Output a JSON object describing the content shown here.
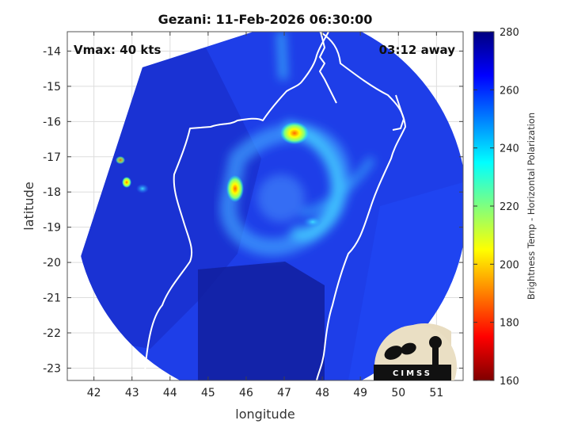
{
  "chart_data": {
    "type": "heatmap",
    "title": "Gezani: 11-Feb-2026 06:30:00",
    "xlabel": "longitude",
    "ylabel": "latitude",
    "xlim": [
      41.3,
      51.7
    ],
    "ylim": [
      -23.35,
      -13.45
    ],
    "xticks": [
      42,
      43,
      44,
      45,
      46,
      47,
      48,
      49,
      50,
      51
    ],
    "yticks": [
      -14,
      -15,
      -16,
      -17,
      -18,
      -19,
      -20,
      -21,
      -22,
      -23
    ],
    "grid": true,
    "annotations": {
      "vmax": "Vmax: 40 kts",
      "time_away": "03:12 away"
    },
    "colorbar": {
      "label": "Brightness Temp - Horizontal Polarization",
      "range": [
        160,
        280
      ],
      "ticks": [
        160,
        180,
        200,
        220,
        240,
        260,
        280
      ],
      "colormap": "jet"
    }
  },
  "logo": {
    "text": "CIMSS"
  },
  "colors": {
    "deep_blue": "#1b2fd6",
    "land_blue": "#1a3fee",
    "coast": "#ffffff",
    "background": "#ffffff"
  }
}
